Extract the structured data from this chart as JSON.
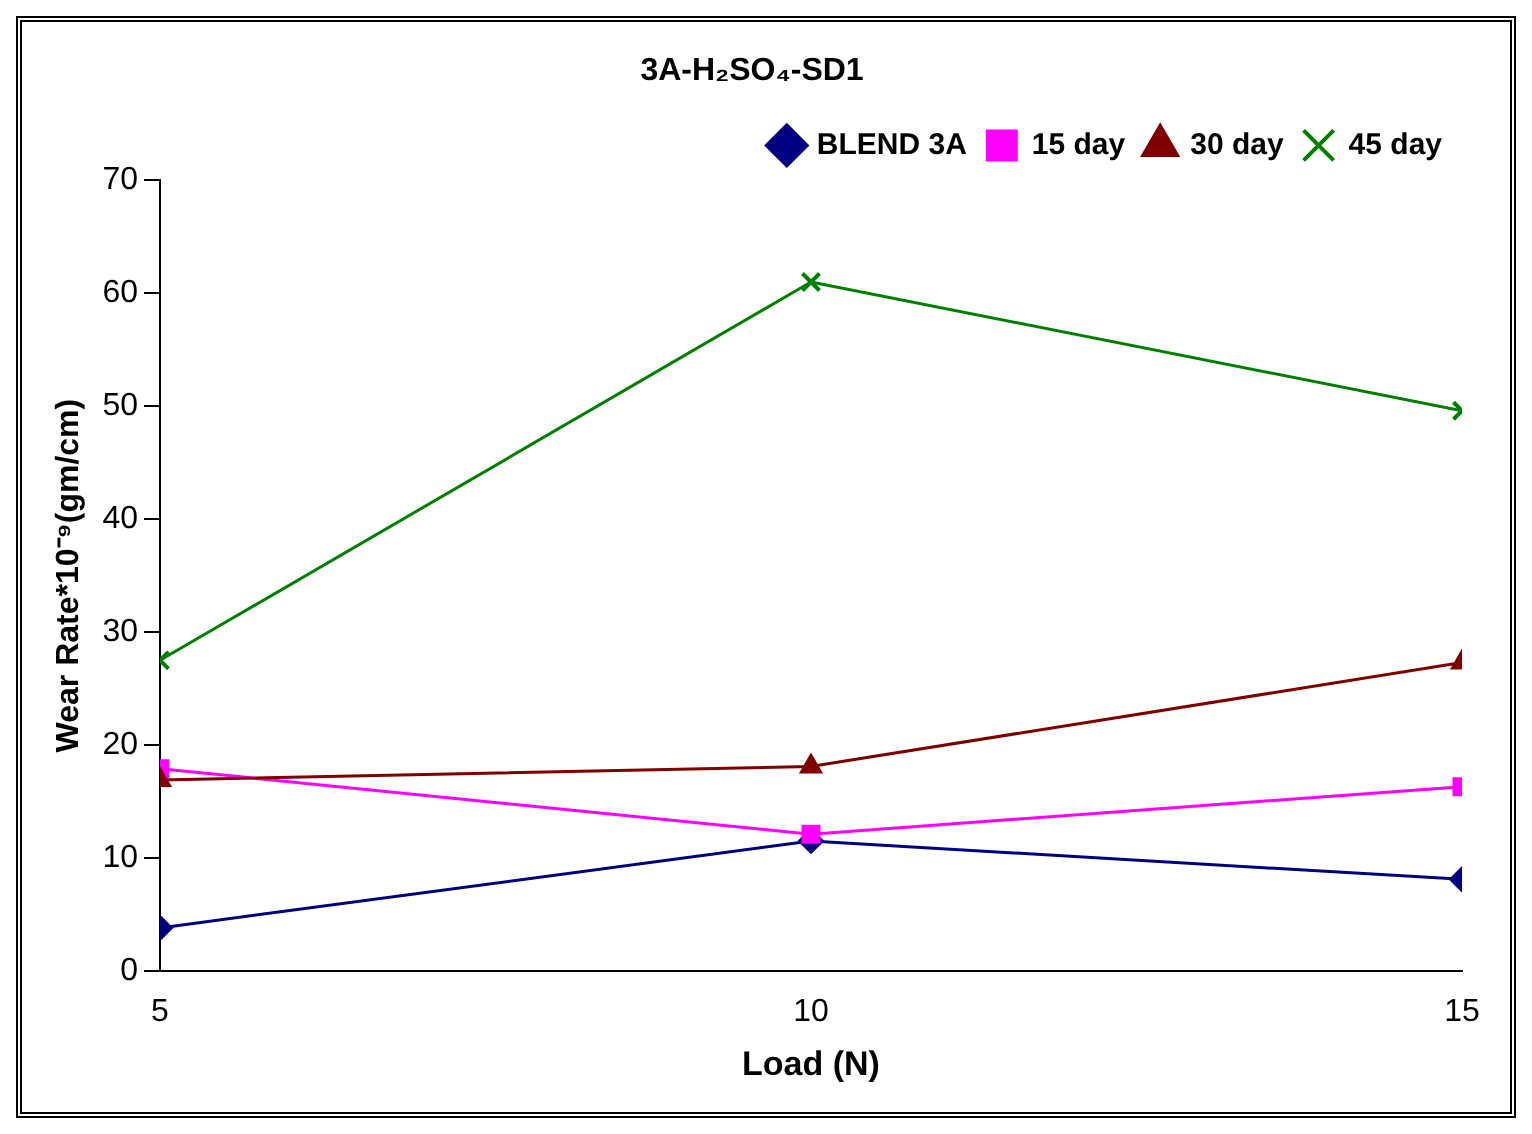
{
  "chart_data": {
    "type": "line",
    "title": "3A-H₂SO₄-SD1",
    "xlabel": "Load (N)",
    "ylabel": "Wear Rate*10⁻⁹(gm/cm)",
    "x": [
      5,
      10,
      15
    ],
    "xlim": [
      5,
      15
    ],
    "xticks": [
      5,
      10,
      15
    ],
    "ylim": [
      0,
      70
    ],
    "yticks": [
      0,
      10,
      20,
      30,
      40,
      50,
      60,
      70
    ],
    "grid": false,
    "legend": "top right",
    "line_style": "solid",
    "series": [
      {
        "name": "BLEND 3A",
        "color": "#000080",
        "marker": "diamond",
        "values": [
          3.8,
          11.5,
          8.1
        ]
      },
      {
        "name": "15 day",
        "color": "#ff00ff",
        "marker": "square",
        "values": [
          17.9,
          12.1,
          16.3
        ]
      },
      {
        "name": "30 day",
        "color": "#800000",
        "marker": "triangle",
        "values": [
          16.9,
          18.1,
          27.3
        ]
      },
      {
        "name": "45 day",
        "color": "#008000",
        "marker": "cross",
        "values": [
          27.5,
          61,
          49.6
        ]
      }
    ]
  }
}
